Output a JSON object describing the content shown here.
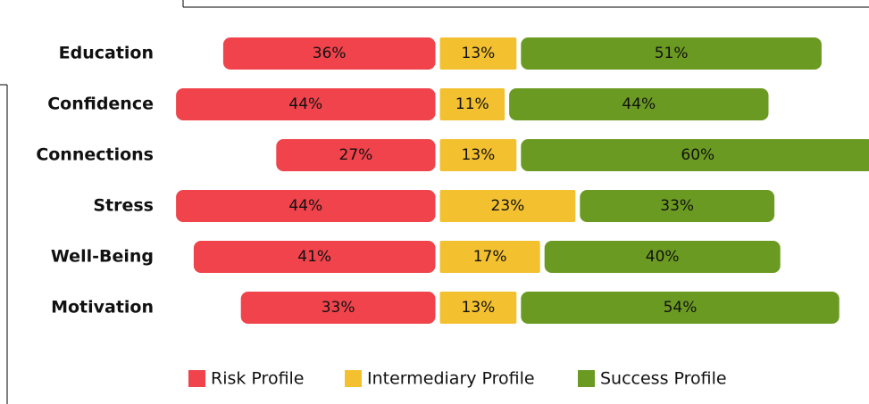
{
  "chart_data": {
    "type": "diverging_bar",
    "categories": [
      "Education",
      "Confidence",
      "Connections",
      "Stress",
      "Well-Being",
      "Motivation"
    ],
    "series": [
      {
        "name": "Risk Profile",
        "color": "#f0434c",
        "values": [
          36,
          44,
          27,
          44,
          41,
          33
        ],
        "value_labels": [
          "36%",
          "44%",
          "27%",
          "44%",
          "41%",
          "33%"
        ]
      },
      {
        "name": "Intermediary Profile",
        "color": "#f3c030",
        "values": [
          13,
          11,
          13,
          23,
          17,
          13
        ],
        "value_labels": [
          "13%",
          "11%",
          "13%",
          "23%",
          "17%",
          "13%"
        ]
      },
      {
        "name": "Success Profile",
        "color": "#6b9a22",
        "values": [
          51,
          44,
          60,
          33,
          40,
          54
        ],
        "value_labels": [
          "51%",
          "44%",
          "60%",
          "33%",
          "40%",
          "54%"
        ]
      }
    ],
    "legend": "bottom"
  }
}
